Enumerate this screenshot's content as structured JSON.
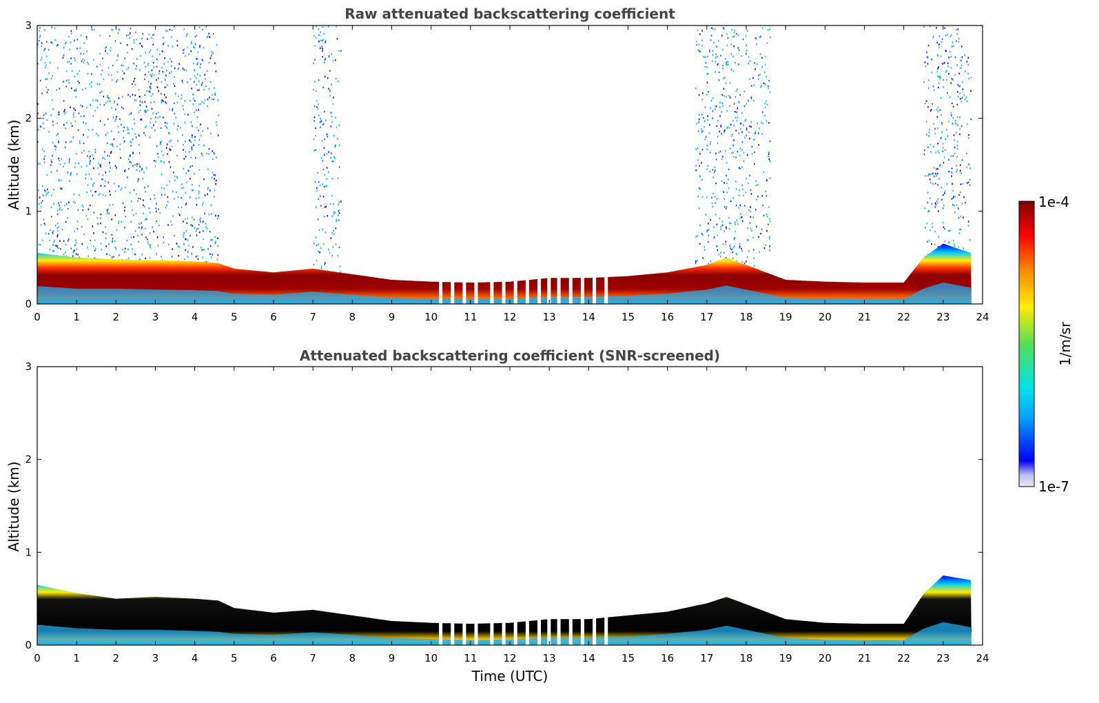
{
  "chart_data": [
    {
      "type": "heatmap",
      "title": "Raw attenuated backscattering coefficient",
      "xlabel": "",
      "ylabel": "Altitude (km)",
      "xlim": [
        0,
        24
      ],
      "ylim": [
        0,
        3
      ],
      "x_ticks": [
        "0",
        "1",
        "2",
        "3",
        "4",
        "5",
        "6",
        "7",
        "8",
        "9",
        "10",
        "11",
        "12",
        "13",
        "14",
        "15",
        "16",
        "17",
        "18",
        "19",
        "20",
        "21",
        "22",
        "23",
        "24"
      ],
      "y_ticks": [
        "0",
        "1",
        "2",
        "3"
      ],
      "layer_top_km": {
        "time": [
          0,
          1,
          2,
          3,
          4,
          4.6,
          5,
          6,
          7,
          8,
          9,
          10,
          11,
          12,
          13,
          14,
          15,
          16,
          17,
          17.5,
          18,
          19,
          20,
          21,
          22,
          22.5,
          23,
          23.7
        ],
        "top": [
          0.55,
          0.5,
          0.48,
          0.47,
          0.46,
          0.44,
          0.38,
          0.34,
          0.38,
          0.32,
          0.26,
          0.24,
          0.23,
          0.24,
          0.28,
          0.28,
          0.3,
          0.34,
          0.42,
          0.5,
          0.42,
          0.26,
          0.24,
          0.23,
          0.23,
          0.5,
          0.65,
          0.55
        ],
        "core": [
          0.35,
          0.3,
          0.3,
          0.28,
          0.27,
          0.25,
          0.2,
          0.18,
          0.24,
          0.18,
          0.12,
          0.1,
          0.09,
          0.1,
          0.14,
          0.14,
          0.16,
          0.2,
          0.28,
          0.36,
          0.28,
          0.12,
          0.1,
          0.09,
          0.09,
          0.3,
          0.42,
          0.32
        ]
      },
      "noise_regions_utc": [
        [
          0,
          4.6
        ],
        [
          7,
          7.7
        ],
        [
          16.7,
          18.6
        ],
        [
          22.5,
          23.7
        ]
      ]
    },
    {
      "type": "heatmap",
      "title": "Attenuated backscattering coefficient (SNR-screened)",
      "xlabel": "Time (UTC)",
      "ylabel": "Altitude (km)",
      "xlim": [
        0,
        24
      ],
      "ylim": [
        0,
        3
      ],
      "x_ticks": [
        "0",
        "1",
        "2",
        "3",
        "4",
        "5",
        "6",
        "7",
        "8",
        "9",
        "10",
        "11",
        "12",
        "13",
        "14",
        "15",
        "16",
        "17",
        "18",
        "19",
        "20",
        "21",
        "22",
        "23",
        "24"
      ],
      "y_ticks": [
        "0",
        "1",
        "2",
        "3"
      ],
      "layer_top_km": {
        "time": [
          0,
          1,
          2,
          3,
          4,
          4.6,
          5,
          6,
          7,
          8,
          9,
          10,
          11,
          12,
          13,
          14,
          15,
          16,
          17,
          17.5,
          18,
          19,
          20,
          21,
          22,
          22.5,
          23,
          23.7
        ],
        "top": [
          0.65,
          0.56,
          0.5,
          0.52,
          0.5,
          0.48,
          0.4,
          0.35,
          0.38,
          0.32,
          0.26,
          0.24,
          0.23,
          0.24,
          0.28,
          0.28,
          0.32,
          0.36,
          0.45,
          0.52,
          0.44,
          0.28,
          0.24,
          0.23,
          0.23,
          0.55,
          0.75,
          0.7
        ],
        "core": [
          0.4,
          0.33,
          0.3,
          0.3,
          0.28,
          0.26,
          0.22,
          0.2,
          0.25,
          0.2,
          0.14,
          0.12,
          0.1,
          0.11,
          0.15,
          0.15,
          0.17,
          0.22,
          0.3,
          0.38,
          0.3,
          0.14,
          0.11,
          0.1,
          0.1,
          0.32,
          0.45,
          0.35
        ]
      }
    }
  ],
  "colorbar": {
    "label": "1/m/sr",
    "max_label": "1e-4",
    "min_label": "1e-7",
    "stops": [
      "#e8e8f8",
      "#c0c0f4",
      "#0000ff",
      "#00aaff",
      "#00e5e5",
      "#55dd55",
      "#ffee00",
      "#ff8800",
      "#ff0000",
      "#7f0000"
    ]
  }
}
